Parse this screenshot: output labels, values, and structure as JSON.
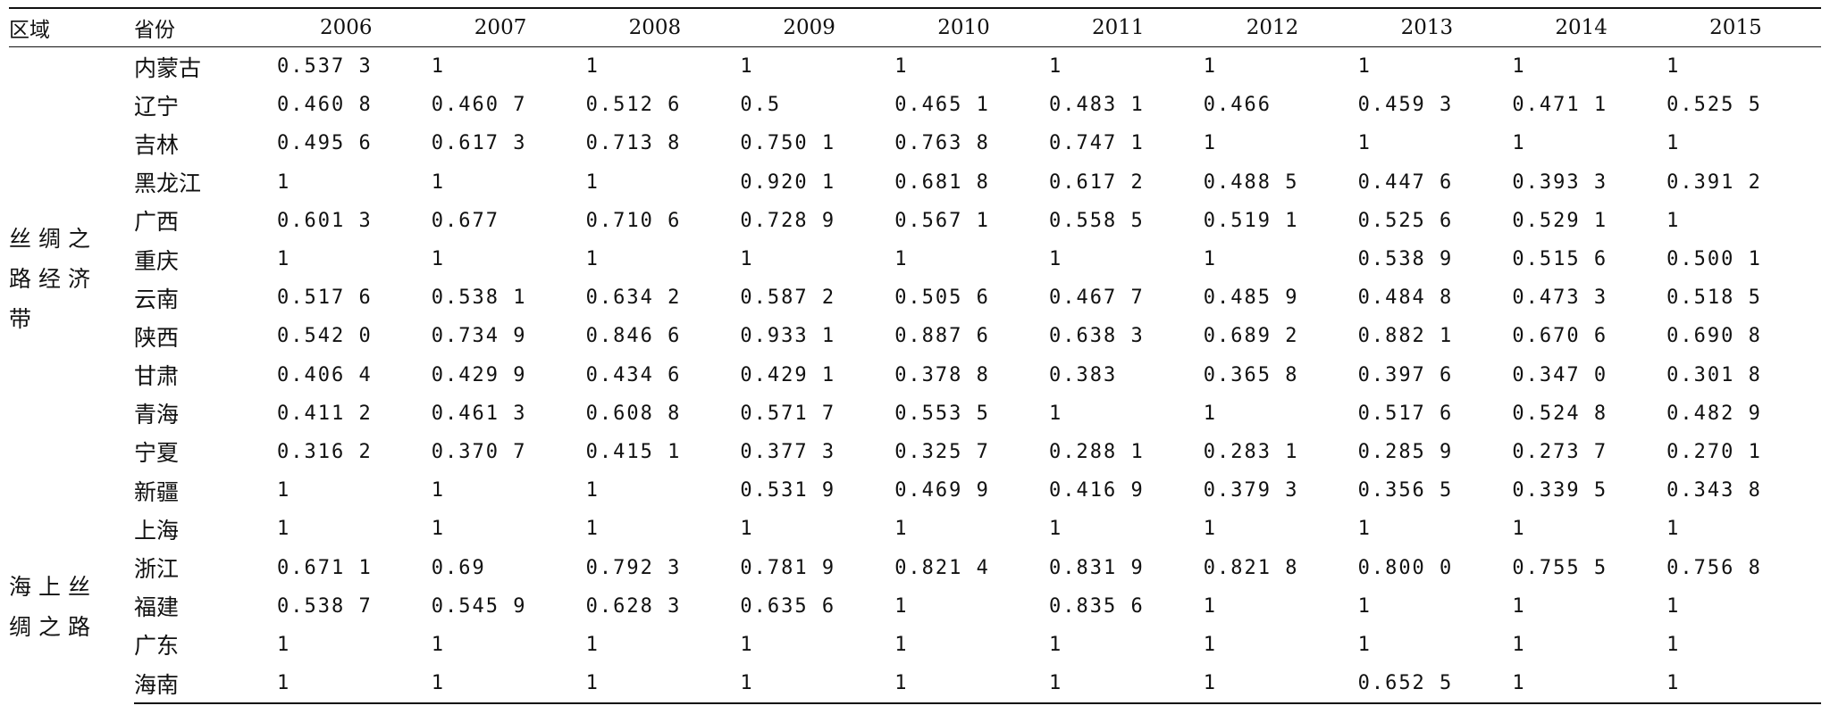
{
  "table": {
    "headers": {
      "region": "区域",
      "province": "省份",
      "years": [
        "2006",
        "2007",
        "2008",
        "2009",
        "2010",
        "2011",
        "2012",
        "2013",
        "2014",
        "2015"
      ]
    },
    "groups": [
      {
        "region": "丝绸之路经济带",
        "rows": [
          {
            "province": "内蒙古",
            "values": [
              "0.537 3",
              "1",
              "1",
              "1",
              "1",
              "1",
              "1",
              "1",
              "1",
              "1"
            ]
          },
          {
            "province": "辽宁",
            "values": [
              "0.460 8",
              "0.460 7",
              "0.512 6",
              "0.5",
              "0.465 1",
              "0.483 1",
              "0.466",
              "0.459 3",
              "0.471 1",
              "0.525 5"
            ]
          },
          {
            "province": "吉林",
            "values": [
              "0.495 6",
              "0.617 3",
              "0.713 8",
              "0.750 1",
              "0.763 8",
              "0.747 1",
              "1",
              "1",
              "1",
              "1"
            ]
          },
          {
            "province": "黑龙江",
            "values": [
              "1",
              "1",
              "1",
              "0.920 1",
              "0.681 8",
              "0.617 2",
              "0.488 5",
              "0.447 6",
              "0.393 3",
              "0.391 2"
            ]
          },
          {
            "province": "广西",
            "values": [
              "0.601 3",
              "0.677",
              "0.710 6",
              "0.728 9",
              "0.567 1",
              "0.558 5",
              "0.519 1",
              "0.525 6",
              "0.529 1",
              "1"
            ]
          },
          {
            "province": "重庆",
            "values": [
              "1",
              "1",
              "1",
              "1",
              "1",
              "1",
              "1",
              "0.538 9",
              "0.515 6",
              "0.500 1"
            ]
          },
          {
            "province": "云南",
            "values": [
              "0.517 6",
              "0.538 1",
              "0.634 2",
              "0.587 2",
              "0.505 6",
              "0.467 7",
              "0.485 9",
              "0.484 8",
              "0.473 3",
              "0.518 5"
            ]
          },
          {
            "province": "陕西",
            "values": [
              "0.542 0",
              "0.734 9",
              "0.846 6",
              "0.933 1",
              "0.887 6",
              "0.638 3",
              "0.689 2",
              "0.882 1",
              "0.670 6",
              "0.690 8"
            ]
          },
          {
            "province": "甘肃",
            "values": [
              "0.406 4",
              "0.429 9",
              "0.434 6",
              "0.429 1",
              "0.378 8",
              "0.383",
              "0.365 8",
              "0.397 6",
              "0.347 0",
              "0.301 8"
            ]
          },
          {
            "province": "青海",
            "values": [
              "0.411 2",
              "0.461 3",
              "0.608 8",
              "0.571 7",
              "0.553 5",
              "1",
              "1",
              "0.517 6",
              "0.524 8",
              "0.482 9"
            ]
          },
          {
            "province": "宁夏",
            "values": [
              "0.316 2",
              "0.370 7",
              "0.415 1",
              "0.377 3",
              "0.325 7",
              "0.288 1",
              "0.283 1",
              "0.285 9",
              "0.273 7",
              "0.270 1"
            ]
          },
          {
            "province": "新疆",
            "values": [
              "1",
              "1",
              "1",
              "0.531 9",
              "0.469 9",
              "0.416 9",
              "0.379 3",
              "0.356 5",
              "0.339 5",
              "0.343 8"
            ]
          }
        ]
      },
      {
        "region": "海上丝绸之路",
        "rows": [
          {
            "province": "上海",
            "values": [
              "1",
              "1",
              "1",
              "1",
              "1",
              "1",
              "1",
              "1",
              "1",
              "1"
            ]
          },
          {
            "province": "浙江",
            "values": [
              "0.671 1",
              "0.69",
              "0.792 3",
              "0.781 9",
              "0.821 4",
              "0.831 9",
              "0.821 8",
              "0.800 0",
              "0.755 5",
              "0.756 8"
            ]
          },
          {
            "province": "福建",
            "values": [
              "0.538 7",
              "0.545 9",
              "0.628 3",
              "0.635 6",
              "1",
              "0.835 6",
              "1",
              "1",
              "1",
              "1"
            ]
          },
          {
            "province": "广东",
            "values": [
              "1",
              "1",
              "1",
              "1",
              "1",
              "1",
              "1",
              "1",
              "1",
              "1"
            ]
          },
          {
            "province": "海南",
            "values": [
              "1",
              "1",
              "1",
              "1",
              "1",
              "1",
              "1",
              "0.652 5",
              "1",
              "1"
            ]
          }
        ]
      }
    ]
  }
}
